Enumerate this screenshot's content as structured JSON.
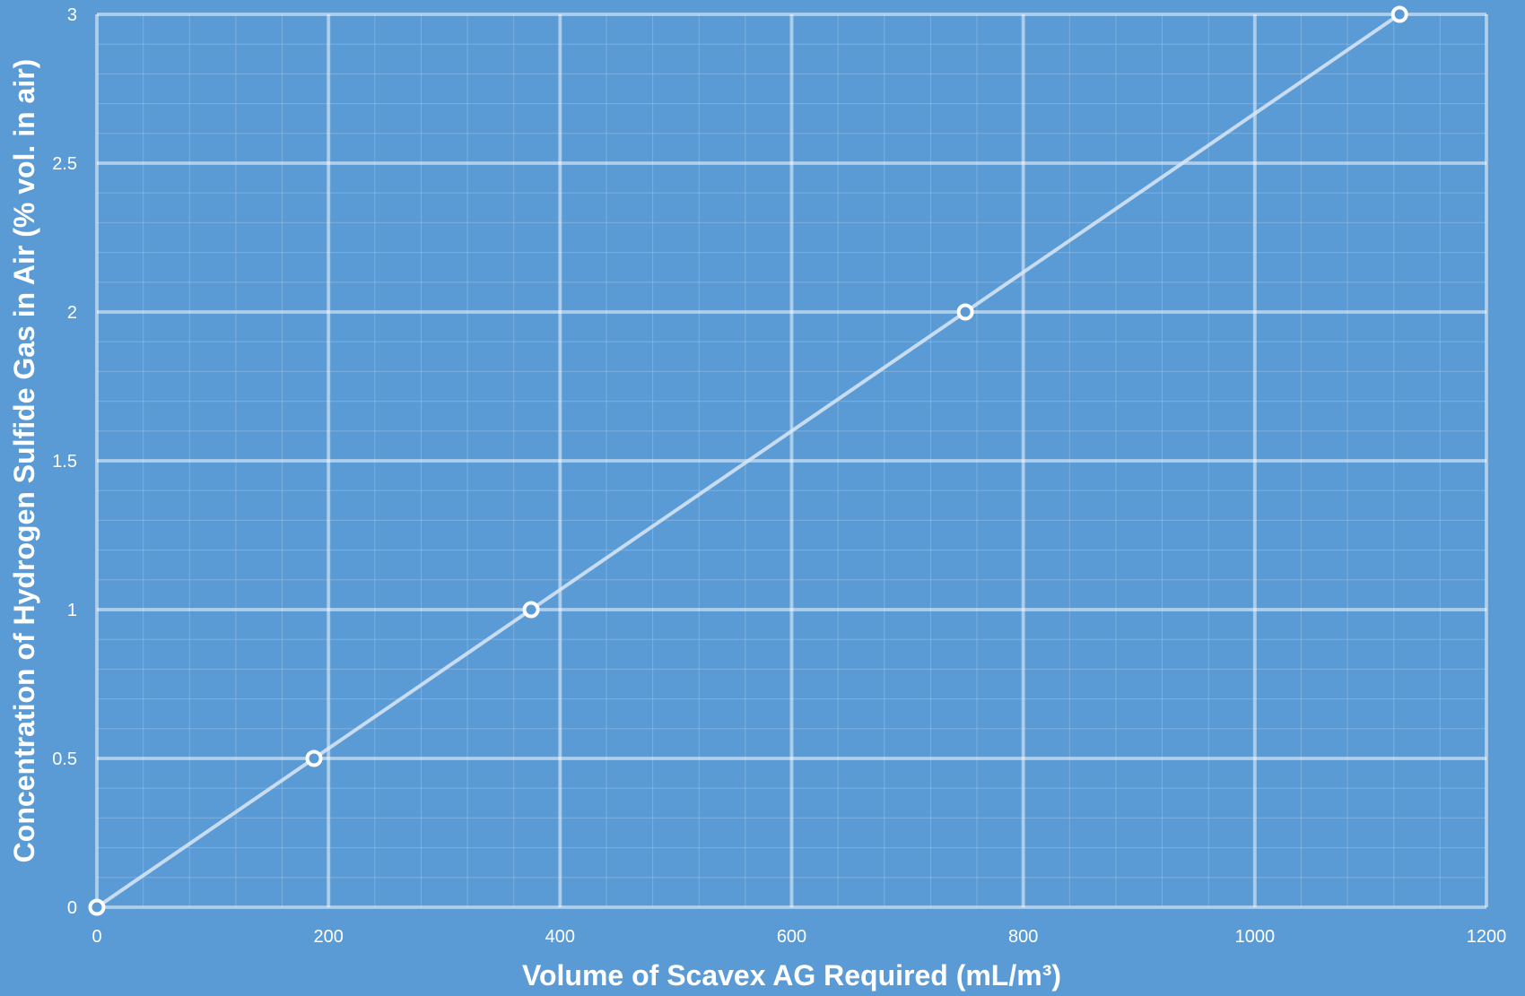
{
  "chart_data": {
    "type": "line",
    "title": "",
    "xlabel": "Volume of Scavex AG Required (mL/m³)",
    "ylabel": "Concentration of Hydrogen Sulfide Gas in Air (% vol. in air)",
    "xlim": [
      0,
      1200
    ],
    "ylim": [
      0,
      3
    ],
    "x_ticks": [
      0,
      200,
      400,
      600,
      800,
      1000,
      1200
    ],
    "x_tick_labels": [
      "0",
      "200",
      "400",
      "600",
      "800",
      "1000",
      "1200"
    ],
    "y_ticks": [
      0,
      0.5,
      1,
      1.5,
      2,
      2.5,
      3
    ],
    "y_tick_labels": [
      "0",
      "0.5",
      "1",
      "1.5",
      "2",
      "2.5",
      "3"
    ],
    "grid": true,
    "minor_grid": true,
    "legend": "none",
    "series": [
      {
        "x": [
          0,
          187.5,
          375,
          750,
          1125
        ],
        "y": [
          0,
          0.5,
          1,
          2,
          3
        ]
      }
    ],
    "colors": {
      "background": "#5b9bd5",
      "line": "#dbe8f6",
      "marker_stroke": "#ffffff",
      "marker_fill": "#5b9bd5",
      "text": "#ffffff"
    }
  }
}
